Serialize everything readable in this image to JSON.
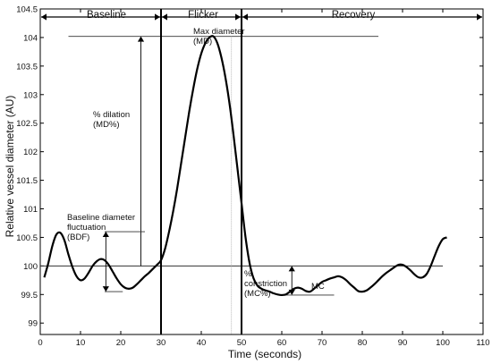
{
  "chart_data": {
    "type": "line",
    "xlabel": "Time (seconds)",
    "ylabel": "Relative vessel diameter (AU)",
    "xlim": [
      0,
      110
    ],
    "ylim": [
      98.8,
      104.5
    ],
    "xticks": [
      0,
      10,
      20,
      30,
      40,
      50,
      60,
      70,
      80,
      90,
      100,
      110
    ],
    "yticks": [
      99,
      99.5,
      100,
      100.5,
      101,
      101.5,
      102,
      102.5,
      103,
      103.5,
      104,
      104.5
    ],
    "ytick_labels": [
      "99",
      "99.5",
      "100",
      "100.5",
      "101",
      "101.5",
      "102",
      "102.5",
      "103",
      "103.5",
      "104",
      "104.5"
    ],
    "grid": false,
    "phases": [
      {
        "label": "Baseline",
        "start": 0,
        "end": 30
      },
      {
        "label": "Flicker",
        "start": 30,
        "end": 50
      },
      {
        "label": "Recovery",
        "start": 50,
        "end": 110
      }
    ],
    "phase_boundaries": [
      30,
      50
    ],
    "baseline_value": 100,
    "series": [
      {
        "x": [
          1,
          2,
          3,
          4,
          5,
          6,
          7,
          8,
          9,
          10,
          11,
          12,
          13,
          14,
          15,
          16,
          17,
          18,
          19,
          20,
          21,
          22,
          23,
          24,
          25,
          26,
          27,
          28,
          29,
          30,
          31,
          32,
          33,
          34,
          35,
          36,
          37,
          38,
          39,
          40,
          41,
          42,
          43,
          44,
          45,
          46,
          47,
          48,
          49,
          50,
          51,
          52,
          53,
          54,
          55,
          56,
          57,
          58,
          59,
          60,
          61,
          62,
          63,
          64,
          65,
          66,
          67,
          68,
          69,
          70,
          71,
          72,
          73,
          74,
          75,
          76,
          77,
          78,
          79,
          80,
          81,
          82,
          83,
          84,
          85,
          86,
          87,
          88,
          89,
          90,
          91,
          92,
          93,
          94,
          95,
          96,
          97,
          98,
          99,
          100,
          101
        ],
        "values": [
          99.8,
          100.05,
          100.35,
          100.55,
          100.58,
          100.45,
          100.2,
          99.98,
          99.82,
          99.75,
          99.78,
          99.88,
          100.0,
          100.08,
          100.12,
          100.1,
          100.02,
          99.9,
          99.78,
          99.68,
          99.62,
          99.6,
          99.62,
          99.68,
          99.75,
          99.82,
          99.88,
          99.95,
          100.02,
          100.1,
          100.3,
          100.6,
          100.95,
          101.35,
          101.8,
          102.25,
          102.7,
          103.1,
          103.45,
          103.72,
          103.9,
          104.0,
          104.02,
          103.9,
          103.65,
          103.3,
          102.85,
          102.3,
          101.7,
          101.1,
          100.5,
          100.05,
          99.78,
          99.65,
          99.6,
          99.57,
          99.55,
          99.52,
          99.5,
          99.49,
          99.5,
          99.55,
          99.6,
          99.62,
          99.6,
          99.56,
          99.55,
          99.6,
          99.66,
          99.72,
          99.75,
          99.78,
          99.8,
          99.82,
          99.8,
          99.75,
          99.68,
          99.62,
          99.56,
          99.55,
          99.57,
          99.62,
          99.68,
          99.75,
          99.82,
          99.88,
          99.93,
          99.98,
          100.02,
          100.02,
          99.98,
          99.92,
          99.85,
          99.8,
          99.8,
          99.86,
          100.0,
          100.18,
          100.35,
          100.47,
          100.5
        ]
      }
    ],
    "annotations": [
      {
        "text": "Max diameter",
        "text2": "(MD)"
      },
      {
        "text": "% dilation",
        "text2": "(MD%)"
      },
      {
        "text": "Baseline diameter",
        "text2": "fluctuation",
        "text3": "(BDF)"
      },
      {
        "text": "%",
        "text2": "constriction",
        "text3": "(MC%)"
      },
      {
        "text": "MC"
      }
    ]
  }
}
